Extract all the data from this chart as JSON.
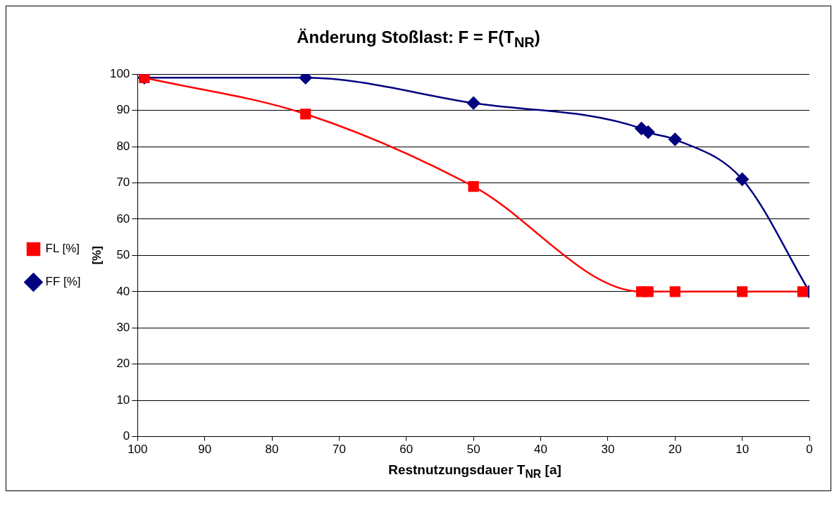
{
  "chart_data": {
    "type": "line",
    "title": "Änderung Stoßlast: F = F(T$_{NR}$)",
    "xlabel": "Restnutzungsdauer T$_{NR}$ [a]",
    "ylabel": "[%]",
    "xlim": [
      100,
      0
    ],
    "xticks": [
      100,
      90,
      80,
      70,
      60,
      50,
      40,
      30,
      20,
      10,
      0
    ],
    "ylim": [
      0,
      100
    ],
    "yticks": [
      0,
      10,
      20,
      30,
      40,
      50,
      60,
      70,
      80,
      90,
      100
    ],
    "grid": "y",
    "legend": "left",
    "line_style": "solid",
    "series": [
      {
        "name": "FF [%]",
        "color": "#000080",
        "marker": "diamond",
        "x": [
          99,
          75,
          50,
          25,
          24,
          20,
          10,
          0
        ],
        "values": [
          99,
          99,
          92,
          85,
          84,
          82,
          71,
          40
        ]
      },
      {
        "name": "FL [%]",
        "color": "#ff0000",
        "marker": "square",
        "x": [
          99,
          75,
          50,
          25,
          24,
          20,
          10,
          1
        ],
        "values": [
          99,
          89,
          69,
          40,
          40,
          40,
          40,
          40
        ]
      }
    ]
  }
}
